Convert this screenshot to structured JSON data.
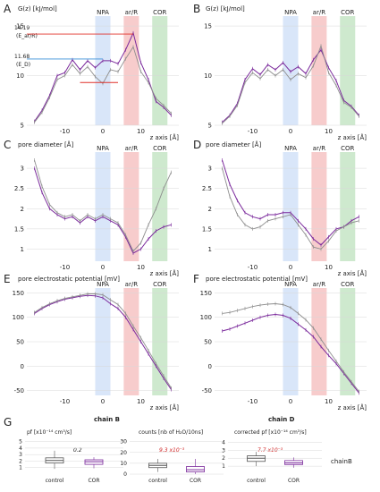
{
  "colors": {
    "purple": "#7b2a9c",
    "grey": "#8e8e8e",
    "npa": "#cfe0f7",
    "arr": "#f4b7b7",
    "cor": "#b9dfb9",
    "red": "#e0302a",
    "blue": "#3a8fd8"
  },
  "regions": [
    "NPA",
    "ar/R",
    "COR"
  ],
  "xunit": "z axis [Å]",
  "chains": [
    "chain B",
    "chain D"
  ],
  "panels": {
    "A": {
      "ylabel": "G(z) [kJ/mol]",
      "ann1": "14.19",
      "ann1b": "(E_ar/R)",
      "ann2": "11.68",
      "ann2b": "(E_D)"
    },
    "B": {
      "ylabel": "G(z) [kJ/mol]"
    },
    "C": {
      "ylabel": "pore diameter [Å]"
    },
    "D": {
      "ylabel": "pore diameter [Å]"
    },
    "E": {
      "ylabel": "pore electrostatic potential [mV]"
    },
    "F": {
      "ylabel": "pore electrostatic potential [mV]"
    },
    "G": {
      "t1": "pf [x10⁻¹⁴ cm³/s]",
      "t2": "counts [nb of H₂O/10ns]",
      "t3": "corrected pf [x10⁻¹⁴ cm³/s]",
      "p1": "0.2",
      "p2": "9.3 x10⁻³",
      "p3": "7.7 x10⁻³",
      "chain": "chainB",
      "c": "control",
      "r": "COR"
    }
  },
  "chart_data": [
    {
      "panel": "A",
      "type": "line",
      "xlim": [
        -20,
        20
      ],
      "ylim": [
        5,
        16
      ],
      "yticks": [
        5,
        10,
        15
      ],
      "xticks": [
        -10,
        0,
        10
      ],
      "series": [
        {
          "color": "purple",
          "x": [
            -18,
            -16,
            -14,
            -12,
            -10,
            -8,
            -6,
            -4,
            -2,
            0,
            2,
            4,
            6,
            8,
            10,
            12,
            14,
            16,
            18
          ],
          "y": [
            5.4,
            6.5,
            8.0,
            10.0,
            10.3,
            11.6,
            10.6,
            11.5,
            10.8,
            11.5,
            11.5,
            11.2,
            12.6,
            14.3,
            11.3,
            9.6,
            7.4,
            6.8,
            6.0
          ]
        },
        {
          "color": "grey",
          "x": [
            -18,
            -16,
            -14,
            -12,
            -10,
            -8,
            -6,
            -4,
            -2,
            0,
            2,
            4,
            6,
            8,
            10,
            12,
            14,
            16,
            18
          ],
          "y": [
            5.3,
            6.3,
            7.8,
            9.6,
            10.0,
            11.1,
            10.2,
            10.9,
            9.9,
            9.2,
            10.6,
            10.4,
            11.7,
            12.9,
            10.4,
            9.3,
            7.7,
            7.0,
            6.2
          ]
        }
      ]
    },
    {
      "panel": "B",
      "type": "line",
      "xlim": [
        -20,
        20
      ],
      "ylim": [
        5,
        16
      ],
      "yticks": [
        5,
        10,
        15
      ],
      "xticks": [
        -10,
        0,
        10
      ],
      "series": [
        {
          "color": "purple",
          "x": [
            -18,
            -16,
            -14,
            -12,
            -10,
            -8,
            -6,
            -4,
            -2,
            0,
            2,
            4,
            6,
            8,
            10,
            12,
            14,
            16,
            18
          ],
          "y": [
            5.3,
            6.0,
            7.2,
            9.6,
            10.7,
            10.1,
            11.1,
            10.6,
            11.3,
            10.4,
            10.9,
            10.2,
            11.6,
            12.6,
            10.8,
            9.5,
            7.5,
            6.9,
            6.0
          ]
        },
        {
          "color": "grey",
          "x": [
            -18,
            -16,
            -14,
            -12,
            -10,
            -8,
            -6,
            -4,
            -2,
            0,
            2,
            4,
            6,
            8,
            10,
            12,
            14,
            16,
            18
          ],
          "y": [
            5.2,
            5.9,
            7.0,
            9.3,
            10.3,
            9.7,
            10.6,
            10.0,
            10.6,
            9.6,
            10.2,
            9.8,
            11.0,
            13.0,
            10.3,
            9.0,
            7.3,
            6.8,
            5.9
          ]
        }
      ]
    },
    {
      "panel": "C",
      "type": "line",
      "xlim": [
        -20,
        20
      ],
      "ylim": [
        0.7,
        3.4
      ],
      "yticks": [
        1,
        1.5,
        2,
        2.5,
        3
      ],
      "xticks": [
        -10,
        0,
        10
      ],
      "series": [
        {
          "color": "purple",
          "x": [
            -18,
            -16,
            -14,
            -12,
            -10,
            -8,
            -6,
            -4,
            -2,
            0,
            2,
            4,
            6,
            8,
            10,
            12,
            14,
            16,
            18
          ],
          "y": [
            3.0,
            2.4,
            2.0,
            1.85,
            1.75,
            1.8,
            1.65,
            1.8,
            1.7,
            1.8,
            1.7,
            1.6,
            1.3,
            0.9,
            1.0,
            1.25,
            1.45,
            1.55,
            1.6
          ]
        },
        {
          "color": "grey",
          "x": [
            -18,
            -16,
            -14,
            -12,
            -10,
            -8,
            -6,
            -4,
            -2,
            0,
            2,
            4,
            6,
            8,
            10,
            12,
            14,
            16,
            18
          ],
          "y": [
            3.2,
            2.55,
            2.1,
            1.9,
            1.8,
            1.85,
            1.7,
            1.85,
            1.75,
            1.85,
            1.75,
            1.65,
            1.35,
            0.95,
            1.15,
            1.6,
            2.0,
            2.5,
            2.9
          ]
        }
      ]
    },
    {
      "panel": "D",
      "type": "line",
      "xlim": [
        -20,
        20
      ],
      "ylim": [
        0.7,
        3.4
      ],
      "yticks": [
        1,
        1.5,
        2,
        2.5,
        3
      ],
      "xticks": [
        -10,
        0,
        10
      ],
      "series": [
        {
          "color": "purple",
          "x": [
            -18,
            -16,
            -14,
            -12,
            -10,
            -8,
            -6,
            -4,
            -2,
            0,
            2,
            4,
            6,
            8,
            10,
            12,
            14,
            16,
            18
          ],
          "y": [
            3.2,
            2.6,
            2.2,
            1.9,
            1.8,
            1.75,
            1.85,
            1.85,
            1.9,
            1.9,
            1.7,
            1.5,
            1.25,
            1.1,
            1.3,
            1.5,
            1.55,
            1.7,
            1.8
          ]
        },
        {
          "color": "grey",
          "x": [
            -18,
            -16,
            -14,
            -12,
            -10,
            -8,
            -6,
            -4,
            -2,
            0,
            2,
            4,
            6,
            8,
            10,
            12,
            14,
            16,
            18
          ],
          "y": [
            3.0,
            2.3,
            1.85,
            1.6,
            1.5,
            1.55,
            1.7,
            1.75,
            1.8,
            1.85,
            1.6,
            1.35,
            1.05,
            1.0,
            1.2,
            1.45,
            1.55,
            1.65,
            1.7
          ]
        }
      ]
    },
    {
      "panel": "E",
      "type": "line",
      "xlim": [
        -20,
        20
      ],
      "ylim": [
        -60,
        160
      ],
      "yticks": [
        -50,
        0,
        50,
        100,
        150
      ],
      "xticks": [
        -10,
        0,
        10
      ],
      "series": [
        {
          "color": "purple",
          "x": [
            -18,
            -16,
            -14,
            -12,
            -10,
            -8,
            -6,
            -4,
            -2,
            0,
            2,
            4,
            6,
            8,
            10,
            12,
            14,
            16,
            18
          ],
          "y": [
            108,
            118,
            126,
            132,
            137,
            140,
            143,
            145,
            144,
            140,
            128,
            118,
            100,
            75,
            50,
            25,
            0,
            -25,
            -48
          ]
        },
        {
          "color": "grey",
          "x": [
            -18,
            -16,
            -14,
            -12,
            -10,
            -8,
            -6,
            -4,
            -2,
            0,
            2,
            4,
            6,
            8,
            10,
            12,
            14,
            16,
            18
          ],
          "y": [
            110,
            120,
            128,
            134,
            139,
            142,
            145,
            148,
            148,
            146,
            136,
            126,
            108,
            82,
            58,
            32,
            5,
            -20,
            -45
          ]
        }
      ]
    },
    {
      "panel": "F",
      "type": "line",
      "xlim": [
        -20,
        20
      ],
      "ylim": [
        -60,
        160
      ],
      "yticks": [
        -50,
        0,
        50,
        100,
        150
      ],
      "xticks": [
        -10,
        0,
        10
      ],
      "series": [
        {
          "color": "purple",
          "x": [
            -18,
            -16,
            -14,
            -12,
            -10,
            -8,
            -6,
            -4,
            -2,
            0,
            2,
            4,
            6,
            8,
            10,
            12,
            14,
            16,
            18
          ],
          "y": [
            72,
            76,
            82,
            88,
            94,
            100,
            104,
            106,
            104,
            98,
            86,
            74,
            60,
            40,
            22,
            5,
            -15,
            -35,
            -55
          ]
        },
        {
          "color": "grey",
          "x": [
            -18,
            -16,
            -14,
            -12,
            -10,
            -8,
            -6,
            -4,
            -2,
            0,
            2,
            4,
            6,
            8,
            10,
            12,
            14,
            16,
            18
          ],
          "y": [
            108,
            110,
            114,
            118,
            122,
            125,
            127,
            128,
            126,
            120,
            108,
            95,
            78,
            55,
            32,
            10,
            -12,
            -32,
            -52
          ]
        }
      ]
    },
    {
      "panel": "G1",
      "type": "box",
      "yticks": [
        1,
        2,
        3,
        4,
        5
      ],
      "ylim": [
        0,
        5.5
      ],
      "groups": [
        "control",
        "COR"
      ],
      "median": [
        2.1,
        1.9
      ],
      "q1": [
        1.7,
        1.5
      ],
      "q3": [
        2.5,
        2.2
      ],
      "lo": [
        0.8,
        0.9
      ],
      "hi": [
        3.6,
        2.6
      ]
    },
    {
      "panel": "G2",
      "type": "box",
      "yticks": [
        0,
        10,
        20,
        30
      ],
      "ylim": [
        0,
        33
      ],
      "groups": [
        "control",
        "COR"
      ],
      "median": [
        8,
        4
      ],
      "q1": [
        6,
        2
      ],
      "q3": [
        10,
        7
      ],
      "lo": [
        2,
        0
      ],
      "hi": [
        14,
        14
      ]
    },
    {
      "panel": "G3",
      "type": "box",
      "yticks": [
        1,
        2,
        3,
        4
      ],
      "ylim": [
        0,
        4.5
      ],
      "groups": [
        "control",
        "COR"
      ],
      "median": [
        2.0,
        1.4
      ],
      "q1": [
        1.6,
        1.2
      ],
      "q3": [
        2.3,
        1.7
      ],
      "lo": [
        1.0,
        0.8
      ],
      "hi": [
        2.8,
        2.1
      ]
    }
  ]
}
